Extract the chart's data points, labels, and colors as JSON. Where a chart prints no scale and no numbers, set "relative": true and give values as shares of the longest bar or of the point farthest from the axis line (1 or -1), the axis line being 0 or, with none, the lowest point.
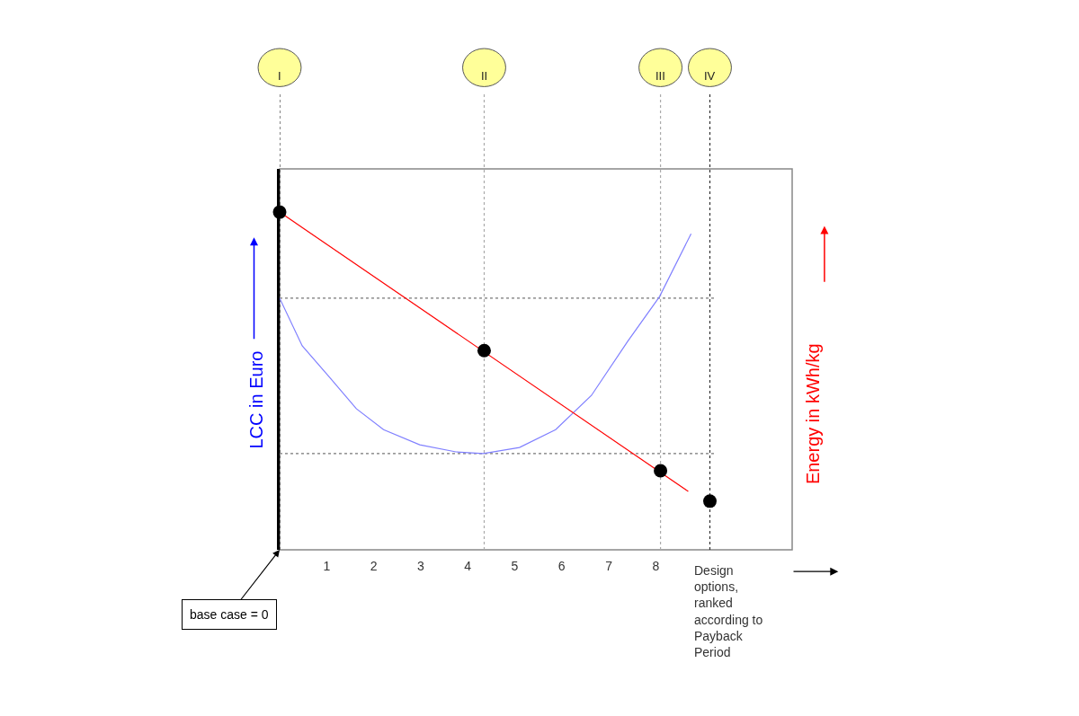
{
  "chart_data": {
    "type": "line",
    "relative": true,
    "xlabel": "Design options, ranked according to Payback Period",
    "ylabel": "LCC in Euro",
    "y2label": "Energy in kWh/kg",
    "xlim": [
      0,
      10.9
    ],
    "xticks": [
      1,
      2,
      3,
      4,
      5,
      6,
      7,
      8
    ],
    "series": [
      {
        "color": "#8080ff",
        "marker": "none",
        "x": [
          0,
          0.48,
          1.06,
          1.63,
          2.21,
          2.98,
          3.75,
          4.33,
          5.1,
          5.87,
          6.63,
          7.4,
          8.08,
          8.75
        ],
        "values": [
          0.745,
          0.604,
          0.511,
          0.418,
          0.356,
          0.311,
          0.29,
          0.285,
          0.303,
          0.356,
          0.457,
          0.617,
          0.75,
          0.936
        ]
      },
      {
        "color": "#ff0000",
        "marker": "none",
        "x": [
          0,
          8.69
        ],
        "values": [
          1,
          0.173
        ]
      },
      {
        "type": "scatter",
        "color": "#000000",
        "marker": "circle",
        "x": [
          0,
          4.35,
          8.1,
          9.15
        ],
        "values": [
          1,
          0.59,
          0.234,
          0.144
        ]
      }
    ],
    "ref_lines": [
      {
        "axis": "x",
        "value": 0,
        "label": "I",
        "color": "#333333",
        "line_style": "dashed"
      },
      {
        "axis": "x",
        "value": 4.35,
        "label": "II",
        "color": "#aaaaaa",
        "line_style": "dashed"
      },
      {
        "axis": "x",
        "value": 8.1,
        "label": "III",
        "color": "#aaaaaa",
        "line_style": "dashed"
      },
      {
        "axis": "x",
        "value": 9.15,
        "label": "IV",
        "color": "#333333",
        "line_style": "dashed"
      },
      {
        "axis": "y",
        "value": 0.745,
        "color": "#777777",
        "line_style": "dashed"
      },
      {
        "axis": "y",
        "value": 0.285,
        "color": "#777777",
        "line_style": "dashed"
      }
    ],
    "annotations": [
      {
        "text": "base case = 0",
        "x": 0,
        "y": 0
      }
    ]
  }
}
